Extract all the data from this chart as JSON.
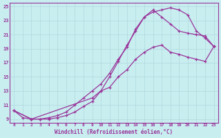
{
  "xlabel": "Windchill (Refroidissement éolien,°C)",
  "background_color": "#c8eef0",
  "grid_color": "#b0d8dc",
  "line_color": "#993399",
  "xlim": [
    -0.5,
    23.5
  ],
  "ylim": [
    8.5,
    25.5
  ],
  "yticks": [
    9,
    11,
    13,
    15,
    17,
    19,
    21,
    23,
    25
  ],
  "xticks": [
    0,
    1,
    2,
    3,
    4,
    5,
    6,
    7,
    8,
    9,
    10,
    11,
    12,
    13,
    14,
    15,
    16,
    17,
    18,
    19,
    20,
    21,
    22,
    23
  ],
  "series1_x": [
    0,
    1,
    2,
    3,
    4,
    5,
    6,
    7,
    8,
    9,
    10,
    11,
    12,
    13,
    14,
    15,
    16,
    17,
    18,
    19,
    20,
    21,
    22,
    23
  ],
  "series1_y": [
    10.2,
    9.2,
    9.0,
    9.0,
    9.0,
    9.2,
    9.5,
    10.0,
    10.8,
    11.5,
    13.0,
    15.0,
    17.2,
    19.5,
    21.5,
    23.5,
    24.2,
    24.5,
    24.8,
    24.5,
    23.8,
    21.5,
    20.5,
    19.3
  ],
  "series2_x": [
    0,
    2,
    3,
    4,
    5,
    6,
    7,
    8,
    9,
    10,
    11,
    12,
    13,
    14,
    15,
    16,
    17,
    18,
    19,
    20,
    21,
    22,
    23
  ],
  "series2_y": [
    10.2,
    9.0,
    9.0,
    9.2,
    9.5,
    10.0,
    11.0,
    12.0,
    13.0,
    14.0,
    15.5,
    17.5,
    19.2,
    21.8,
    23.5,
    24.5,
    23.5,
    22.5,
    21.5,
    21.2,
    21.0,
    20.8,
    19.3
  ],
  "series3_x": [
    0,
    2,
    9,
    10,
    11,
    12,
    13,
    14,
    15,
    16,
    17,
    18,
    19,
    20,
    21,
    22,
    23
  ],
  "series3_y": [
    10.2,
    9.0,
    12.0,
    13.0,
    13.5,
    15.0,
    16.0,
    17.5,
    18.5,
    19.2,
    19.5,
    18.5,
    18.2,
    17.8,
    17.5,
    17.2,
    19.3
  ]
}
